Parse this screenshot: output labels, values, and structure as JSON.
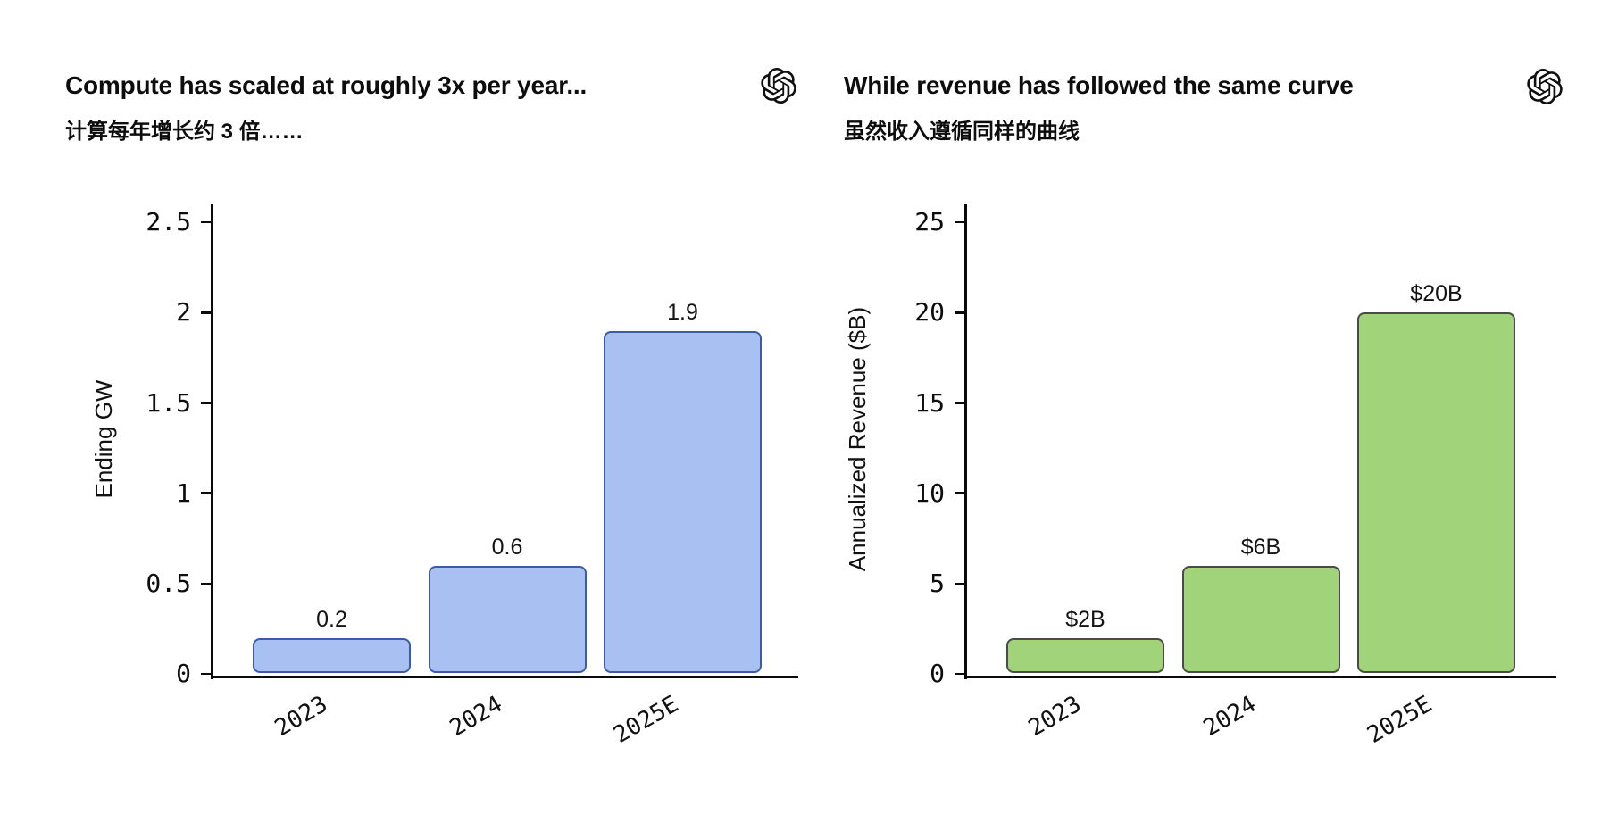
{
  "page": {
    "background": "#ffffff",
    "text_color": "#0d0d0d",
    "axis_color": "#0a0a0a"
  },
  "chart_data": [
    {
      "type": "bar",
      "title": "Compute has scaled at roughly 3x per year...",
      "subtitle_zh": "计算每年增长约 3 倍……",
      "categories": [
        "2023",
        "2024",
        "2025E"
      ],
      "values": [
        0.2,
        0.6,
        1.9
      ],
      "bar_labels": [
        "0.2",
        "0.6",
        "1.9"
      ],
      "xlabel": "",
      "ylabel": "Ending GW",
      "ylim": [
        0,
        2.6
      ],
      "yticks": [
        0,
        0.5,
        1,
        1.5,
        2,
        2.5
      ],
      "ytick_labels": [
        "0",
        "0.5",
        "1",
        "1.5",
        "2",
        "2.5"
      ],
      "xtick_rotation_deg": 30,
      "grid": false,
      "legend": null,
      "bar_fill": "#a8c1f2",
      "bar_edge": "#3c5ca8"
    },
    {
      "type": "bar",
      "title": "While revenue has followed the same curve",
      "subtitle_zh": "虽然收入遵循同样的曲线",
      "categories": [
        "2023",
        "2024",
        "2025E"
      ],
      "values": [
        2,
        6,
        20
      ],
      "bar_labels": [
        "$2B",
        "$6B",
        "$20B"
      ],
      "xlabel": "",
      "ylabel": "Annualized Revenue ($B)",
      "ylim": [
        0,
        26
      ],
      "yticks": [
        0,
        5,
        10,
        15,
        20,
        25
      ],
      "ytick_labels": [
        "0",
        "5",
        "10",
        "15",
        "20",
        "25"
      ],
      "xtick_rotation_deg": 30,
      "grid": false,
      "legend": null,
      "bar_fill": "#a1d37a",
      "bar_edge": "#4a4a4a"
    }
  ],
  "icons": {
    "left_panel_logo": "openai-logo",
    "right_panel_logo": "openai-logo"
  }
}
